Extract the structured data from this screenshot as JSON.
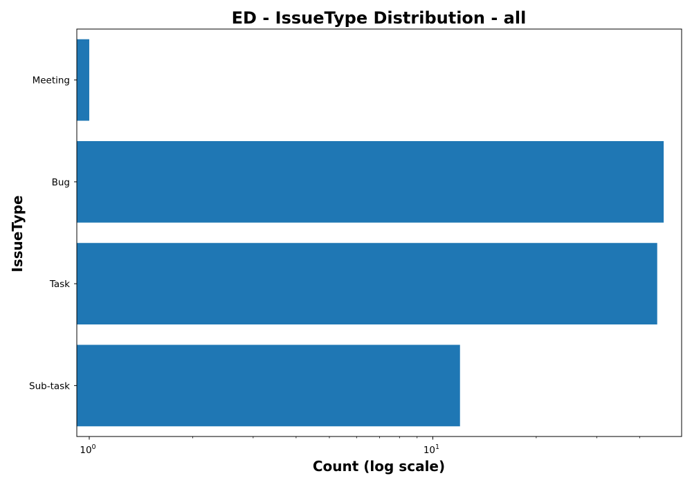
{
  "chart_data": {
    "type": "bar",
    "orientation": "horizontal",
    "title": "ED - IssueType Distribution - all",
    "xlabel": "Count (log scale)",
    "ylabel": "IssueType",
    "x_scale": "log",
    "xlim": [
      0.92,
      53
    ],
    "x_major_ticks": [
      {
        "value": 1,
        "base": "10",
        "exponent": "0"
      },
      {
        "value": 10,
        "base": "10",
        "exponent": "1"
      }
    ],
    "x_minor_ticks": [
      2,
      3,
      4,
      5,
      6,
      7,
      8,
      9,
      20,
      30,
      40
    ],
    "categories": [
      "Meeting",
      "Bug",
      "Task",
      "Sub-task"
    ],
    "values": [
      1,
      47,
      45,
      12
    ],
    "bar_color": "#1f77b4",
    "grid": false,
    "legend": "none"
  }
}
